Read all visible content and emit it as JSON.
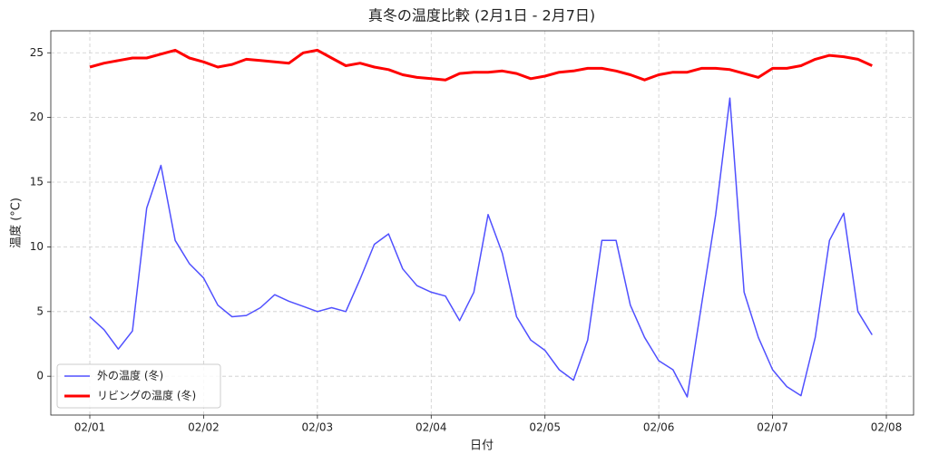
{
  "chart_data": {
    "type": "line",
    "title": "真冬の温度比較 (2月1日 - 2月7日)",
    "x_label": "日付",
    "y_label": "温度 (°C)",
    "categories": [
      "02/01",
      null,
      null,
      null,
      null,
      null,
      null,
      null,
      "02/02",
      null,
      null,
      null,
      null,
      null,
      null,
      null,
      "02/03",
      null,
      null,
      null,
      null,
      null,
      null,
      null,
      "02/04",
      null,
      null,
      null,
      null,
      null,
      null,
      null,
      "02/05",
      null,
      null,
      null,
      null,
      null,
      null,
      null,
      "02/06",
      null,
      null,
      null,
      null,
      null,
      null,
      null,
      "02/07",
      null,
      null,
      null,
      null,
      null,
      null,
      null,
      "02/08"
    ],
    "series": [
      {
        "name": "外の温度 (冬)",
        "color": "#5050ff",
        "values": [
          4.6,
          3.6,
          2.1,
          3.5,
          13,
          16.3,
          10.5,
          8.7,
          7.6,
          5.5,
          4.6,
          4.7,
          5.3,
          6.3,
          5.8,
          5.4,
          5.0,
          5.3,
          5.0,
          7.5,
          10.2,
          11,
          8.3,
          7.0,
          6.5,
          6.2,
          4.3,
          6.5,
          12.5,
          9.5,
          4.6,
          2.8,
          2.0,
          0.5,
          -0.3,
          2.8,
          10.5,
          10.5,
          5.5,
          3.0,
          1.2,
          0.5,
          -1.6,
          5.5,
          12.5,
          21.5,
          6.5,
          3,
          0.5,
          -0.8,
          -1.5,
          3,
          10.5,
          12.6,
          5,
          3.2,
          null
        ]
      },
      {
        "name": "リビングの温度 (冬)",
        "color": "#ff0000",
        "values": [
          23.9,
          24.2,
          24.4,
          24.6,
          24.6,
          24.9,
          25.2,
          24.6,
          24.3,
          23.9,
          24.1,
          24.5,
          24.4,
          24.3,
          24.2,
          25.0,
          25.2,
          24.6,
          24.0,
          24.2,
          23.9,
          23.7,
          23.3,
          23.1,
          23.0,
          22.9,
          23.4,
          23.5,
          23.5,
          23.6,
          23.4,
          23.0,
          23.2,
          23.5,
          23.6,
          23.8,
          23.8,
          23.6,
          23.3,
          22.9,
          23.3,
          23.5,
          23.5,
          23.8,
          23.8,
          23.7,
          23.4,
          23.1,
          23.8,
          23.8,
          24.0,
          24.5,
          24.8,
          24.7,
          24.5,
          24.0,
          null
        ]
      }
    ],
    "ylim": [
      -3,
      26.7
    ],
    "yticks": [
      0,
      5,
      10,
      15,
      20,
      25
    ],
    "grid": true,
    "legend": "lower left"
  }
}
